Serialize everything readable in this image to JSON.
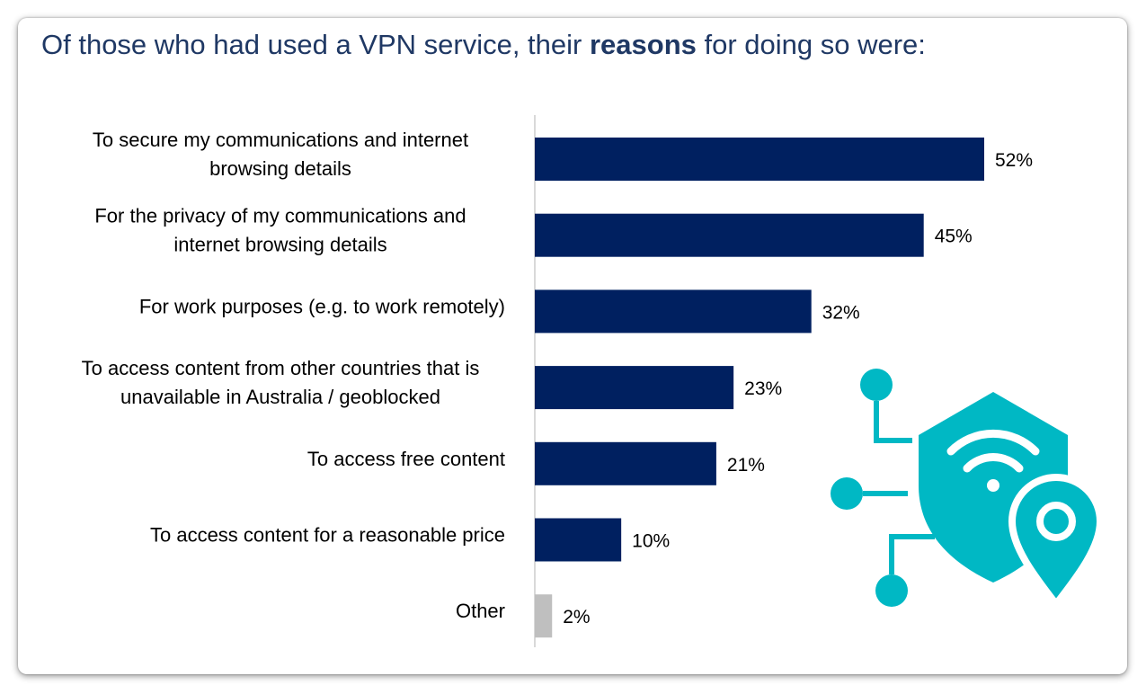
{
  "title": {
    "part1": "Of those who had used a VPN service, their ",
    "bold": "reasons",
    "part2": " for doing so were:"
  },
  "colors": {
    "title": "#1f3864",
    "bar_primary": "#002060",
    "bar_other": "#bfbfbf",
    "icon": "#00b8c4",
    "axis": "#d9d9d9"
  },
  "icon": {
    "name": "vpn-shield-wifi-location-icon"
  },
  "chart_data": {
    "type": "bar",
    "orientation": "horizontal",
    "title": "Of those who had used a VPN service, their reasons for doing so were:",
    "xlabel": "",
    "ylabel": "",
    "xlim": [
      0,
      52
    ],
    "grid": false,
    "legend": "none",
    "categories": [
      [
        "To secure my communications and internet",
        "browsing details"
      ],
      [
        "For the privacy of my communications and",
        "internet browsing details"
      ],
      [
        "For work purposes (e.g. to work remotely)"
      ],
      [
        "To access content from other countries that is",
        "unavailable in Australia / geoblocked"
      ],
      [
        "To access free content"
      ],
      [
        "To access content for a reasonable price"
      ],
      [
        "Other"
      ]
    ],
    "values": [
      52,
      45,
      32,
      23,
      21,
      10,
      2
    ],
    "value_labels": [
      "52%",
      "45%",
      "32%",
      "23%",
      "21%",
      "10%",
      "2%"
    ],
    "bar_colors": [
      "#002060",
      "#002060",
      "#002060",
      "#002060",
      "#002060",
      "#002060",
      "#bfbfbf"
    ]
  }
}
